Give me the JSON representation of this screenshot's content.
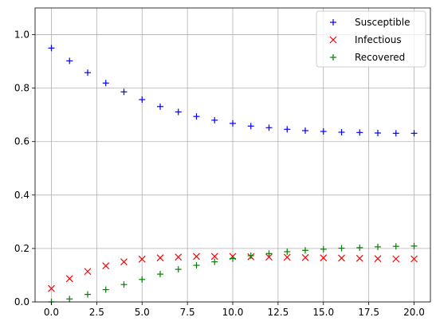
{
  "chart_data": {
    "type": "scatter",
    "title": "",
    "xlabel": "",
    "ylabel": "",
    "xlim": [
      -0.9,
      20.9
    ],
    "ylim": [
      0.0,
      1.1
    ],
    "grid": true,
    "legend_position": "top-right",
    "x_ticks": [
      0.0,
      2.5,
      5.0,
      7.5,
      10.0,
      12.5,
      15.0,
      17.5,
      20.0
    ],
    "x_tick_labels": [
      "0.0",
      "2.5",
      "5.0",
      "7.5",
      "10.0",
      "12.5",
      "15.0",
      "17.5",
      "20.0"
    ],
    "y_ticks": [
      0.0,
      0.2,
      0.4,
      0.6,
      0.8,
      1.0
    ],
    "y_tick_labels": [
      "0.0",
      "0.2",
      "0.4",
      "0.6",
      "0.8",
      "1.0"
    ],
    "x": [
      0,
      1,
      2,
      3,
      4,
      5,
      6,
      7,
      8,
      9,
      10,
      11,
      12,
      13,
      14,
      15,
      16,
      17,
      18,
      19,
      20
    ],
    "series": [
      {
        "name": "Susceptible",
        "marker": "plus",
        "color": "#0000ff",
        "values": [
          0.95,
          0.902,
          0.858,
          0.819,
          0.786,
          0.757,
          0.731,
          0.711,
          0.694,
          0.68,
          0.668,
          0.658,
          0.652,
          0.646,
          0.641,
          0.638,
          0.635,
          0.634,
          0.632,
          0.631,
          0.631
        ]
      },
      {
        "name": "Infectious",
        "marker": "x",
        "color": "#ff0000",
        "values": [
          0.05,
          0.087,
          0.114,
          0.135,
          0.15,
          0.16,
          0.165,
          0.168,
          0.17,
          0.17,
          0.17,
          0.169,
          0.168,
          0.167,
          0.166,
          0.165,
          0.164,
          0.163,
          0.162,
          0.161,
          0.161
        ]
      },
      {
        "name": "Recovered",
        "marker": "plus",
        "color": "#008000",
        "values": [
          0.0,
          0.011,
          0.028,
          0.046,
          0.065,
          0.084,
          0.104,
          0.122,
          0.137,
          0.15,
          0.162,
          0.173,
          0.181,
          0.188,
          0.193,
          0.197,
          0.201,
          0.203,
          0.206,
          0.208,
          0.209
        ]
      }
    ]
  }
}
